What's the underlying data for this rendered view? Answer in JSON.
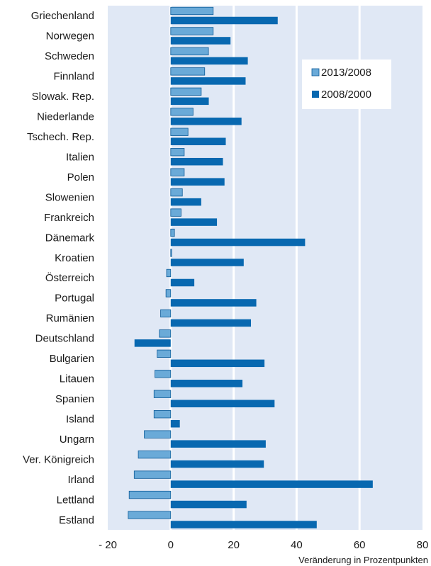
{
  "chart_data": {
    "type": "bar",
    "orientation": "horizontal",
    "categories": [
      "Griechenland",
      "Norwegen",
      "Schweden",
      "Finnland",
      "Slowak. Rep.",
      "Niederlande",
      "Tschech. Rep.",
      "Italien",
      "Polen",
      "Slowenien",
      "Frankreich",
      "Dänemark",
      "Kroatien",
      "Österreich",
      "Portugal",
      "Rumänien",
      "Deutschland",
      "Bulgarien",
      "Litauen",
      "Spanien",
      "Island",
      "Ungarn",
      "Ver. Königreich",
      "Irland",
      "Lettland",
      "Estland"
    ],
    "series": [
      {
        "name": "2013/2008",
        "color": "#6aaad8",
        "values": [
          13.5,
          13.5,
          12,
          10.8,
          9.7,
          7.1,
          5.5,
          4.3,
          4.3,
          3.7,
          3.3,
          1.2,
          0.3,
          -1.3,
          -1.5,
          -3.2,
          -3.6,
          -4.3,
          -5,
          -5.3,
          -5.3,
          -8.4,
          -10.3,
          -11.6,
          -13.2,
          -13.5
        ]
      },
      {
        "name": "2008/2000",
        "color": "#0868b0",
        "values": [
          34,
          19,
          24.5,
          23.8,
          12.1,
          22.5,
          17.5,
          16.6,
          17.1,
          9.7,
          14.7,
          42.7,
          23.2,
          7.5,
          27.2,
          25.5,
          -11.5,
          29.8,
          22.8,
          33,
          2.9,
          30.2,
          29.6,
          64.2,
          24.1,
          46.4
        ]
      }
    ],
    "xlim": [
      -20,
      80
    ],
    "xticks": [
      -20,
      0,
      20,
      40,
      60,
      80
    ],
    "xtick_labels": [
      "- 20",
      "0",
      "20",
      "40",
      "60",
      "80"
    ],
    "xlabel": "Veränderung in Prozentpunkten",
    "legend_position": "top-right",
    "grid": true,
    "background_color": "#e0e8f5"
  }
}
